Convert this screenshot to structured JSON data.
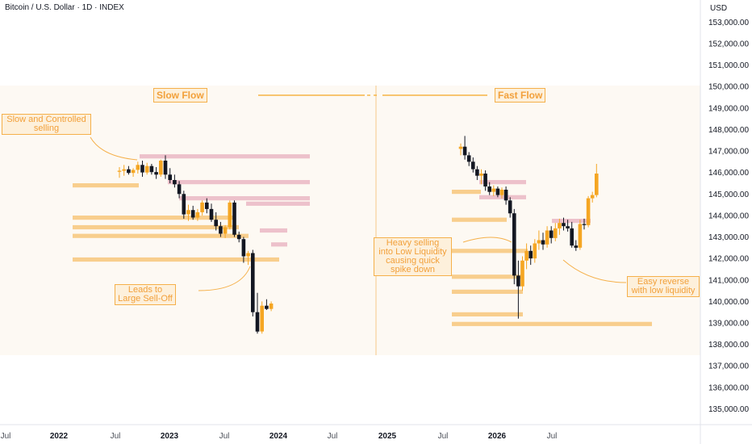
{
  "header": {
    "title": "Bitcoin / U.S. Dollar · 1D · INDEX",
    "currency": "USD"
  },
  "colors": {
    "up": "#f5a623",
    "down": "#131722",
    "liquidity_below": "#f7c77a",
    "liquidity_above": "#eab7c3",
    "annotation_border": "#f5b04a",
    "annotation_text": "#f2a03a",
    "shade": "#fdf9f3"
  },
  "annotations": {
    "slow_flow": "Slow Flow",
    "fast_flow": "Fast Flow",
    "slow_selling": "Slow and Controlled\nselling",
    "leads_to": "Leads to\nLarge Sell-Off",
    "heavy_selling": "Heavy selling\ninto Low Liquidity\ncausing quick\nspike down",
    "easy_reverse": "Easy reverse\nwith low liquidity"
  },
  "chart_data": {
    "type": "candlestick",
    "title": "Bitcoin / U.S. Dollar · 1D · INDEX",
    "y_unit": "USD",
    "ylim": [
      134400,
      153600
    ],
    "y_ticks": [
      "153,000.00",
      "152,000.00",
      "151,000.00",
      "150,000.00",
      "149,000.00",
      "148,000.00",
      "147,000.00",
      "146,000.00",
      "145,000.00",
      "144,000.00",
      "143,000.00",
      "142,000.00",
      "141,000.00",
      "140,000.00",
      "139,000.00",
      "138,000.00",
      "137,000.00",
      "136,000.00",
      "135,000.00"
    ],
    "x_ticks": [
      "Jul",
      "2022",
      "Jul",
      "2023",
      "Jul",
      "2024",
      "Jul",
      "2025",
      "Jul",
      "2026",
      "Jul"
    ],
    "grid": false,
    "legend": "none",
    "slow_flow_candles": [
      {
        "o": 146030,
        "h": 146250,
        "l": 145750,
        "c": 146080
      },
      {
        "o": 146080,
        "h": 146350,
        "l": 145850,
        "c": 146150
      },
      {
        "o": 146150,
        "h": 146300,
        "l": 145900,
        "c": 145980
      },
      {
        "o": 145980,
        "h": 146200,
        "l": 145800,
        "c": 146120
      },
      {
        "o": 146120,
        "h": 146500,
        "l": 145950,
        "c": 146350
      },
      {
        "o": 146350,
        "h": 146550,
        "l": 145800,
        "c": 146000
      },
      {
        "o": 146000,
        "h": 146450,
        "l": 145900,
        "c": 146300
      },
      {
        "o": 146300,
        "h": 146400,
        "l": 145900,
        "c": 146020
      },
      {
        "o": 146020,
        "h": 146250,
        "l": 145700,
        "c": 145900
      },
      {
        "o": 145900,
        "h": 146600,
        "l": 145800,
        "c": 146550
      },
      {
        "o": 146550,
        "h": 146800,
        "l": 145700,
        "c": 145900
      },
      {
        "o": 145900,
        "h": 146200,
        "l": 145500,
        "c": 145650
      },
      {
        "o": 145650,
        "h": 145900,
        "l": 145300,
        "c": 145450
      },
      {
        "o": 145450,
        "h": 145600,
        "l": 144800,
        "c": 145000
      },
      {
        "o": 145000,
        "h": 145150,
        "l": 143850,
        "c": 144050
      },
      {
        "o": 144050,
        "h": 144500,
        "l": 143750,
        "c": 144250
      },
      {
        "o": 144250,
        "h": 144450,
        "l": 143800,
        "c": 143900
      },
      {
        "o": 143900,
        "h": 144300,
        "l": 143750,
        "c": 144150
      },
      {
        "o": 144150,
        "h": 144700,
        "l": 144000,
        "c": 144600
      },
      {
        "o": 144600,
        "h": 144800,
        "l": 144100,
        "c": 144300
      },
      {
        "o": 144300,
        "h": 144550,
        "l": 143700,
        "c": 143800
      },
      {
        "o": 143800,
        "h": 144150,
        "l": 143300,
        "c": 143500
      },
      {
        "o": 143500,
        "h": 143700,
        "l": 143000,
        "c": 143150
      },
      {
        "o": 143150,
        "h": 143550,
        "l": 142950,
        "c": 143450
      },
      {
        "o": 143450,
        "h": 144700,
        "l": 143350,
        "c": 144600
      },
      {
        "o": 144600,
        "h": 144700,
        "l": 143000,
        "c": 143100
      },
      {
        "o": 143100,
        "h": 143250,
        "l": 142750,
        "c": 142900
      },
      {
        "o": 142900,
        "h": 143000,
        "l": 141800,
        "c": 142100
      },
      {
        "o": 142100,
        "h": 142350,
        "l": 141700,
        "c": 142250
      },
      {
        "o": 142250,
        "h": 142400,
        "l": 139300,
        "c": 139500
      },
      {
        "o": 139500,
        "h": 140400,
        "l": 138500,
        "c": 138600
      },
      {
        "o": 138600,
        "h": 140000,
        "l": 138500,
        "c": 139800
      },
      {
        "o": 139800,
        "h": 140100,
        "l": 139600,
        "c": 139650
      },
      {
        "o": 139650,
        "h": 140000,
        "l": 139550,
        "c": 139900
      }
    ],
    "fast_flow_candles": [
      {
        "o": 147100,
        "h": 147350,
        "l": 146800,
        "c": 147200
      },
      {
        "o": 147200,
        "h": 147700,
        "l": 146600,
        "c": 146800
      },
      {
        "o": 146800,
        "h": 146950,
        "l": 146300,
        "c": 146500
      },
      {
        "o": 146500,
        "h": 146700,
        "l": 146000,
        "c": 146150
      },
      {
        "o": 146150,
        "h": 146300,
        "l": 145650,
        "c": 145850
      },
      {
        "o": 145850,
        "h": 146150,
        "l": 145450,
        "c": 145950
      },
      {
        "o": 145950,
        "h": 146100,
        "l": 145150,
        "c": 145350
      },
      {
        "o": 145350,
        "h": 145550,
        "l": 144950,
        "c": 145100
      },
      {
        "o": 145100,
        "h": 145400,
        "l": 144900,
        "c": 145250
      },
      {
        "o": 145250,
        "h": 145350,
        "l": 144850,
        "c": 144950
      },
      {
        "o": 144950,
        "h": 145300,
        "l": 144800,
        "c": 145200
      },
      {
        "o": 145200,
        "h": 145350,
        "l": 144500,
        "c": 144700
      },
      {
        "o": 144700,
        "h": 144850,
        "l": 143900,
        "c": 144100
      },
      {
        "o": 144100,
        "h": 144300,
        "l": 140800,
        "c": 141200
      },
      {
        "o": 141200,
        "h": 141900,
        "l": 139200,
        "c": 140700
      },
      {
        "o": 140700,
        "h": 142100,
        "l": 140500,
        "c": 141900
      },
      {
        "o": 141900,
        "h": 142700,
        "l": 141500,
        "c": 142350
      },
      {
        "o": 142350,
        "h": 142600,
        "l": 141700,
        "c": 142000
      },
      {
        "o": 142000,
        "h": 142900,
        "l": 141800,
        "c": 142700
      },
      {
        "o": 142700,
        "h": 143300,
        "l": 142400,
        "c": 142850
      },
      {
        "o": 142850,
        "h": 143200,
        "l": 142400,
        "c": 142650
      },
      {
        "o": 142650,
        "h": 143500,
        "l": 142500,
        "c": 143300
      },
      {
        "o": 143300,
        "h": 143500,
        "l": 142700,
        "c": 142950
      },
      {
        "o": 142950,
        "h": 143650,
        "l": 142800,
        "c": 143400
      },
      {
        "o": 143400,
        "h": 143850,
        "l": 143100,
        "c": 143650
      },
      {
        "o": 143650,
        "h": 143900,
        "l": 143300,
        "c": 143500
      },
      {
        "o": 143500,
        "h": 143800,
        "l": 143250,
        "c": 143400
      },
      {
        "o": 143400,
        "h": 143700,
        "l": 142500,
        "c": 142600
      },
      {
        "o": 142600,
        "h": 142850,
        "l": 142350,
        "c": 142500
      },
      {
        "o": 142500,
        "h": 143800,
        "l": 142400,
        "c": 143600
      },
      {
        "o": 143600,
        "h": 143850,
        "l": 143350,
        "c": 143550
      },
      {
        "o": 143550,
        "h": 144900,
        "l": 143450,
        "c": 144800
      },
      {
        "o": 144800,
        "h": 145100,
        "l": 144600,
        "c": 144950
      },
      {
        "o": 144950,
        "h": 146400,
        "l": 144850,
        "c": 145950
      }
    ],
    "liquidity_zones": [
      {
        "side": "above",
        "price": 146750
      },
      {
        "side": "above",
        "price": 145550
      },
      {
        "side": "above",
        "price": 144800
      },
      {
        "side": "above",
        "price": 144550
      },
      {
        "side": "above",
        "price": 143300
      },
      {
        "side": "above",
        "price": 142650
      },
      {
        "side": "below",
        "price": 145400
      },
      {
        "side": "below",
        "price": 143900
      },
      {
        "side": "below",
        "price": 143450
      },
      {
        "side": "below",
        "price": 143050
      },
      {
        "side": "below",
        "price": 141950
      },
      {
        "side": "above",
        "price": 145550
      },
      {
        "side": "above",
        "price": 144850
      },
      {
        "side": "above",
        "price": 143750
      },
      {
        "side": "below",
        "price": 145100
      },
      {
        "side": "below",
        "price": 143800
      },
      {
        "side": "below",
        "price": 142350
      },
      {
        "side": "below",
        "price": 141150
      },
      {
        "side": "below",
        "price": 140450
      },
      {
        "side": "below",
        "price": 139400
      },
      {
        "side": "below",
        "price": 138950
      }
    ]
  }
}
